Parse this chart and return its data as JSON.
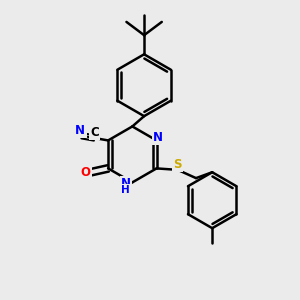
{
  "bg_color": "#ebebeb",
  "bond_color": "#000000",
  "bond_width": 1.8,
  "atom_colors": {
    "N": "#0000ff",
    "O": "#ff0000",
    "S": "#ccaa00",
    "C": "#000000"
  },
  "layout": {
    "xlim": [
      0,
      10
    ],
    "ylim": [
      0,
      10
    ]
  }
}
